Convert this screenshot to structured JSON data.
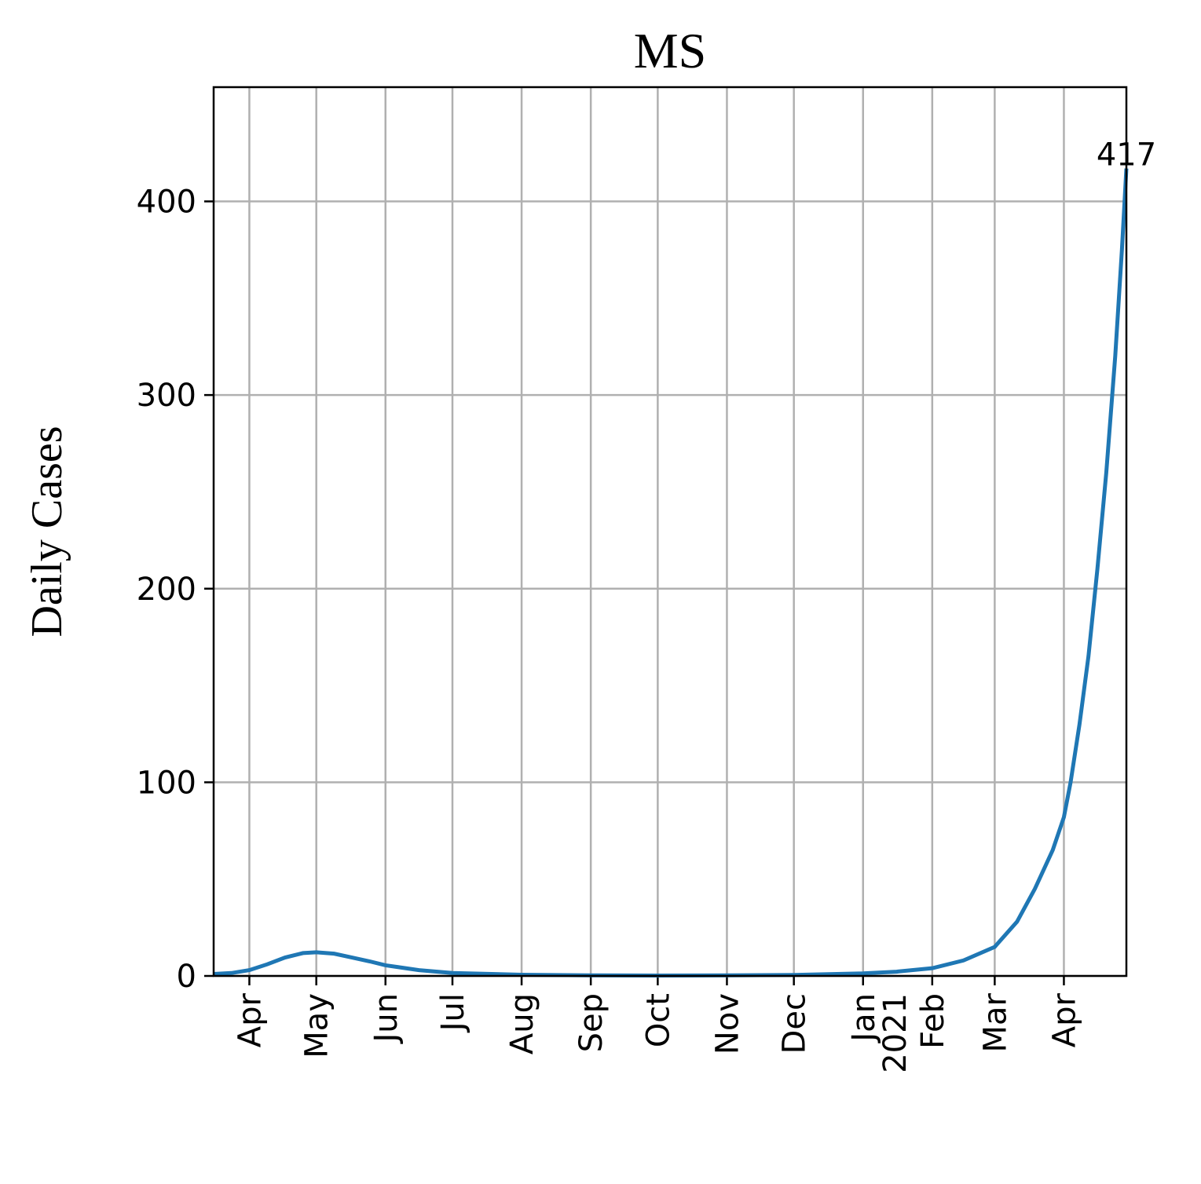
{
  "chart_data": {
    "type": "line",
    "title": "MS",
    "y_label": "Daily Cases",
    "x": [
      -16,
      -8,
      0,
      8,
      16,
      24,
      30,
      38,
      46,
      54,
      61,
      76,
      91,
      122,
      153,
      183,
      214,
      244,
      275,
      290,
      306,
      320,
      334,
      344,
      352,
      360,
      365,
      368,
      372,
      376,
      380,
      384,
      388,
      391,
      393
    ],
    "series": [
      {
        "name": "Daily Cases",
        "color": "#1f77b4",
        "values": [
          1,
          1.5,
          3,
          6,
          9.5,
          11.8,
          12.2,
          11.5,
          9.5,
          7.5,
          5.5,
          3,
          1.5,
          0.6,
          0.3,
          0.2,
          0.3,
          0.5,
          1.3,
          2.2,
          4,
          8,
          15,
          28,
          45,
          65,
          82,
          100,
          130,
          165,
          210,
          260,
          320,
          375,
          417
        ]
      }
    ],
    "annotations": [
      {
        "x": 393,
        "y": 417,
        "text": "417"
      }
    ],
    "xlim": [
      -16,
      393
    ],
    "ylim": [
      0,
      459
    ],
    "xticks": [
      {
        "value": 0,
        "label": "Apr"
      },
      {
        "value": 30,
        "label": "May"
      },
      {
        "value": 61,
        "label": "Jun"
      },
      {
        "value": 91,
        "label": "Jul"
      },
      {
        "value": 122,
        "label": "Aug"
      },
      {
        "value": 153,
        "label": "Sep"
      },
      {
        "value": 183,
        "label": "Oct"
      },
      {
        "value": 214,
        "label": "Nov"
      },
      {
        "value": 244,
        "label": "Dec"
      },
      {
        "value": 275,
        "label": "Jan\n2021"
      },
      {
        "value": 306,
        "label": "Feb"
      },
      {
        "value": 334,
        "label": "Mar"
      },
      {
        "value": 365,
        "label": "Apr"
      }
    ],
    "yticks": [
      0,
      100,
      200,
      300,
      400
    ],
    "grid": true
  }
}
